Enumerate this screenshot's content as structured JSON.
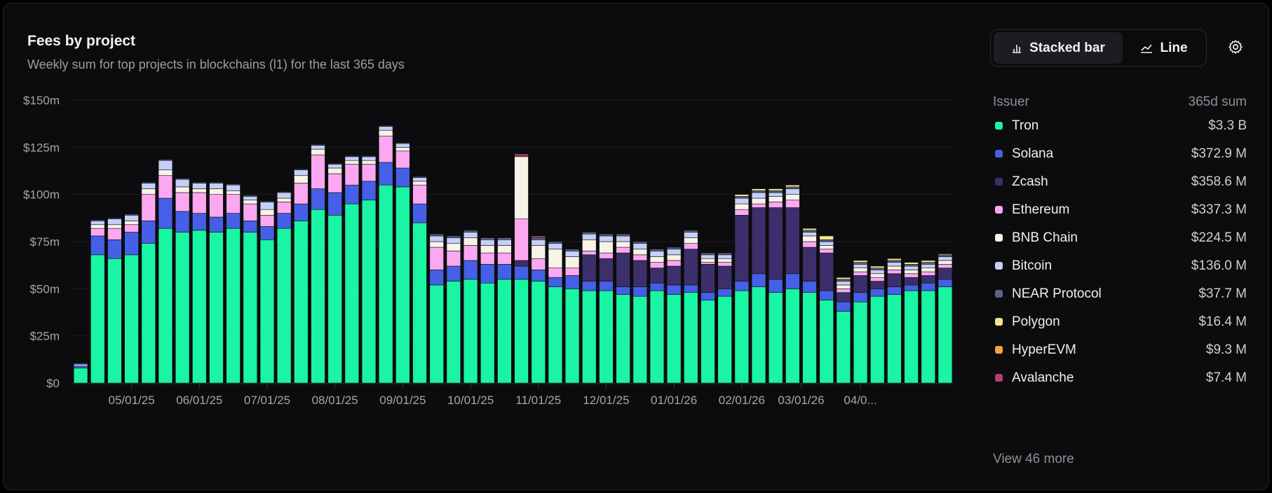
{
  "header": {
    "title": "Fees by project",
    "subtitle": "Weekly sum for top projects in blockchains (l1) for the last 365 days"
  },
  "toggle": {
    "stacked_label": "Stacked bar",
    "line_label": "Line",
    "active": "stacked"
  },
  "legend": {
    "col_issuer": "Issuer",
    "col_sum": "365d sum",
    "items": [
      {
        "name": "Tron",
        "value": "$3.3 B",
        "color": "#19f5a2"
      },
      {
        "name": "Solana",
        "value": "$372.9 M",
        "color": "#4560e6"
      },
      {
        "name": "Zcash",
        "value": "$358.6 M",
        "color": "#3c2f6b"
      },
      {
        "name": "Ethereum",
        "value": "$337.3 M",
        "color": "#fca8f0"
      },
      {
        "name": "BNB Chain",
        "value": "$224.5 M",
        "color": "#f7f3e6"
      },
      {
        "name": "Bitcoin",
        "value": "$136.0 M",
        "color": "#c4cffa"
      },
      {
        "name": "NEAR Protocol",
        "value": "$37.7 M",
        "color": "#5a6583"
      },
      {
        "name": "Polygon",
        "value": "$16.4 M",
        "color": "#f6e58d"
      },
      {
        "name": "HyperEVM",
        "value": "$9.3 M",
        "color": "#f5a142"
      },
      {
        "name": "Avalanche",
        "value": "$7.4 M",
        "color": "#b13f74"
      }
    ],
    "view_more": "View 46 more"
  },
  "chart_data": {
    "type": "bar",
    "stacked": true,
    "title": "Fees by project",
    "subtitle": "Weekly sum for top projects in blockchains (l1) for the last 365 days",
    "y_ticks": [
      "$0",
      "$25m",
      "$50m",
      "$75m",
      "$100m",
      "$125m",
      "$150m"
    ],
    "ylim": [
      0,
      150
    ],
    "x_tick_labels": [
      "05/01/25",
      "06/01/25",
      "07/01/25",
      "08/01/25",
      "09/01/25",
      "10/01/25",
      "11/01/25",
      "12/01/25",
      "01/01/26",
      "02/01/26",
      "03/01/26",
      "04/0..."
    ],
    "x_tick_positions": [
      3.5,
      7.5,
      11.5,
      15.5,
      19.5,
      23.5,
      27.5,
      31.5,
      35.5,
      39.5,
      43,
      46.5
    ],
    "grid": true,
    "series": [
      {
        "name": "Tron",
        "color": "#19f5a2",
        "values": [
          8,
          68,
          66,
          68,
          74,
          82,
          80,
          81,
          80,
          82,
          80,
          76,
          82,
          86,
          92,
          89,
          95,
          97,
          105,
          104,
          85,
          52,
          54,
          55,
          53,
          55,
          55,
          54,
          51,
          50,
          49,
          49,
          47,
          46,
          49,
          47,
          48,
          44,
          46,
          49,
          51,
          48,
          50,
          48,
          44,
          38,
          43,
          46,
          47,
          49,
          49,
          51
        ]
      },
      {
        "name": "Solana",
        "color": "#4560e6",
        "values": [
          1,
          10,
          10,
          12,
          12,
          16,
          11,
          9,
          8,
          8,
          6,
          7,
          8,
          9,
          11,
          12,
          10,
          10,
          12,
          10,
          10,
          8,
          8,
          10,
          10,
          8,
          7,
          6,
          5,
          7,
          5,
          5,
          4,
          5,
          4,
          5,
          4,
          4,
          4,
          5,
          7,
          7,
          8,
          6,
          5,
          5,
          5,
          4,
          4,
          3,
          4,
          4
        ]
      },
      {
        "name": "Zcash",
        "color": "#3c2f6b",
        "values": [
          0,
          0,
          0,
          0,
          0,
          0,
          0,
          0,
          0,
          0,
          0,
          0,
          0,
          0,
          0,
          0,
          0,
          0,
          0,
          0,
          0,
          0,
          0,
          0,
          0,
          0,
          3,
          0,
          0,
          0,
          14,
          12,
          18,
          14,
          8,
          10,
          19,
          15,
          12,
          35,
          35,
          38,
          35,
          18,
          20,
          5,
          9,
          4,
          7,
          4,
          4,
          6
        ]
      },
      {
        "name": "Ethereum",
        "color": "#fca8f0",
        "values": [
          0,
          4,
          6,
          4,
          14,
          12,
          10,
          11,
          12,
          10,
          9,
          6,
          6,
          11,
          18,
          10,
          11,
          9,
          14,
          9,
          10,
          12,
          8,
          8,
          6,
          6,
          22,
          6,
          5,
          4,
          2,
          3,
          3,
          3,
          3,
          3,
          3,
          1,
          2,
          3,
          2,
          3,
          4,
          3,
          2,
          2,
          2,
          2,
          2,
          2,
          2,
          2
        ]
      },
      {
        "name": "BNB Chain",
        "color": "#f7f3e6",
        "values": [
          0,
          2,
          2,
          2,
          3,
          3,
          3,
          2,
          3,
          2,
          2,
          3,
          2,
          4,
          3,
          3,
          2,
          2,
          3,
          2,
          2,
          3,
          4,
          4,
          4,
          4,
          33,
          7,
          10,
          6,
          6,
          6,
          3,
          3,
          3,
          3,
          3,
          2,
          2,
          3,
          3,
          3,
          3,
          3,
          2,
          2,
          2,
          2,
          2,
          2,
          2,
          2
        ]
      },
      {
        "name": "Bitcoin",
        "color": "#c4cffa",
        "values": [
          1,
          2,
          3,
          3,
          3,
          5,
          4,
          3,
          3,
          3,
          2,
          4,
          3,
          3,
          2,
          2,
          2,
          2,
          2,
          2,
          2,
          3,
          3,
          3,
          3,
          3,
          0,
          3,
          3,
          3,
          3,
          3,
          3,
          3,
          3,
          3,
          3,
          2,
          2,
          3,
          3,
          2,
          3,
          2,
          2,
          2,
          2,
          2,
          2,
          2,
          2,
          2
        ]
      },
      {
        "name": "NEAR Protocol",
        "color": "#5a6583",
        "values": [
          0.5,
          0.5,
          0.5,
          0.5,
          0.5,
          0.5,
          0.5,
          0.5,
          0.5,
          0.5,
          0.5,
          0.5,
          0.5,
          0.5,
          0.5,
          0.5,
          0.5,
          0.5,
          0.5,
          0.5,
          0.5,
          1,
          1,
          1,
          1,
          1,
          0,
          1,
          1,
          1,
          1,
          1,
          1,
          1,
          1,
          1,
          1,
          1,
          1,
          1,
          1,
          1,
          1,
          1,
          1,
          1,
          1,
          1,
          1,
          1,
          1,
          1
        ]
      },
      {
        "name": "Polygon",
        "color": "#f6e58d",
        "values": [
          0,
          0,
          0,
          0,
          0,
          0,
          0,
          0,
          0,
          0,
          0,
          0,
          0,
          0,
          0,
          0,
          0,
          0,
          0,
          0,
          0,
          0,
          0,
          0,
          0,
          0,
          0,
          0,
          0,
          0,
          0,
          0,
          0,
          0,
          0,
          0,
          0,
          0,
          0,
          1,
          1,
          1,
          1,
          1,
          2,
          1,
          1,
          1,
          1,
          1,
          1,
          0.5
        ]
      },
      {
        "name": "HyperEVM",
        "color": "#f5a142",
        "values": [
          0,
          0,
          0,
          0,
          0,
          0,
          0,
          0,
          0,
          0,
          0,
          0,
          0,
          0,
          0,
          0,
          0,
          0,
          0,
          0,
          0,
          0,
          0,
          0,
          0,
          0,
          0.5,
          0,
          0,
          0,
          0,
          0,
          0,
          0,
          0,
          0,
          0,
          0,
          0,
          0,
          0,
          0,
          0,
          0,
          0,
          0,
          0,
          0,
          0,
          0,
          0,
          0
        ]
      },
      {
        "name": "Avalanche",
        "color": "#b13f74",
        "values": [
          0,
          0,
          0,
          0,
          0,
          0,
          0,
          0,
          0,
          0,
          0,
          0,
          0,
          0,
          0,
          0,
          0,
          0,
          0,
          0,
          0,
          0,
          0,
          0,
          0,
          0,
          1,
          1,
          0,
          0,
          0,
          0,
          0,
          0,
          0,
          0,
          0,
          0,
          0,
          0,
          0,
          0,
          0,
          0,
          0,
          0,
          0,
          0,
          0,
          0,
          0,
          0
        ]
      }
    ]
  }
}
